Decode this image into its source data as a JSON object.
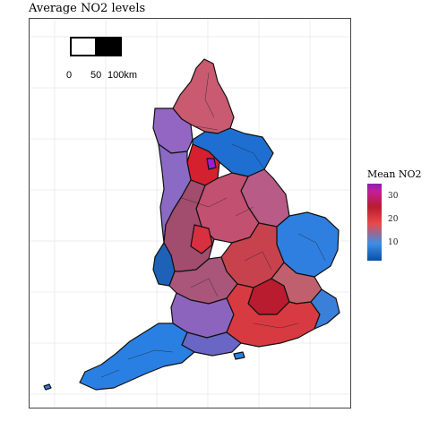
{
  "title": "Average NO2 levels",
  "legend": {
    "title": "Mean NO2",
    "ticks": [
      "30",
      "20",
      "10"
    ],
    "colors": {
      "high": "#8b1fb3",
      "mid_high": "#b81c2e",
      "mid": "#e84a4a",
      "low": "#3a8fe6",
      "lowest": "#0a4ea8"
    }
  },
  "scalebar": {
    "labels": [
      "0",
      "50",
      "100km"
    ]
  },
  "colors": {
    "north_east": "#c95a70",
    "yorkshire": "#1e6fd1",
    "west_yorks_purple": "#9a1fd0",
    "north_west": "#9466c4",
    "midlands": "#b5536e",
    "east": "#2f7fe0",
    "london": "#d4202f",
    "south_east": "#d83a42",
    "south_west": "#2a7fe3",
    "wales_border": "#8060c0"
  }
}
